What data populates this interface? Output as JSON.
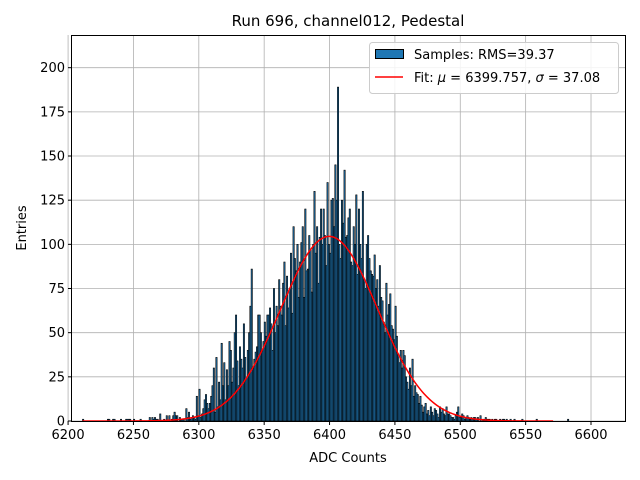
{
  "chart_data": {
    "type": "bar",
    "title": "Run 696, channel012, Pedestal",
    "xlabel": "ADC Counts",
    "ylabel": "Entries",
    "xlim": [
      6203,
      6626
    ],
    "ylim": [
      0,
      218.5
    ],
    "xticks": [
      6200,
      6250,
      6300,
      6350,
      6400,
      6450,
      6500,
      6550,
      6600
    ],
    "yticks": [
      0,
      25,
      50,
      75,
      100,
      125,
      150,
      175,
      200
    ],
    "grid": true,
    "legend_position": "top-right",
    "histogram": {
      "name": "Samples: RMS=39.37",
      "bin_start": 6211,
      "bin_width": 1,
      "color": "#1f77b4",
      "edgecolor": "#000000",
      "values": [
        1,
        0,
        0,
        0,
        0,
        0,
        0,
        0,
        0,
        0,
        0,
        0,
        0,
        0,
        0,
        0,
        0,
        0,
        0,
        1,
        1,
        0,
        0,
        1,
        1,
        0,
        0,
        0,
        0,
        1,
        0,
        0,
        0,
        1,
        1,
        1,
        1,
        0,
        0,
        1,
        0,
        0,
        0,
        0,
        1,
        0,
        0,
        0,
        0,
        0,
        0,
        2,
        0,
        2,
        1,
        2,
        1,
        1,
        0,
        4,
        0,
        0,
        1,
        0,
        3,
        0,
        3,
        0,
        1,
        3,
        5,
        3,
        3,
        0,
        2,
        1,
        1,
        1,
        0,
        7,
        2,
        5,
        1,
        2,
        3,
        2,
        1,
        14,
        3,
        18,
        2,
        4,
        7,
        12,
        15,
        10,
        7,
        10,
        14,
        20,
        30,
        5,
        36,
        8,
        22,
        12,
        44,
        20,
        33,
        12,
        29,
        20,
        45,
        40,
        22,
        30,
        50,
        60,
        34,
        20,
        42,
        35,
        30,
        55,
        36,
        24,
        40,
        50,
        65,
        86,
        30,
        35,
        39,
        42,
        60,
        60,
        50,
        40,
        45,
        56,
        48,
        60,
        60,
        64,
        55,
        40,
        75,
        50,
        65,
        54,
        80,
        65,
        60,
        78,
        90,
        54,
        82,
        64,
        75,
        95,
        61,
        110,
        92,
        85,
        100,
        70,
        90,
        101,
        110,
        70,
        120,
        85,
        86,
        105,
        97,
        73,
        100,
        130,
        95,
        110,
        78,
        104,
        120,
        100,
        120,
        105,
        88,
        135,
        100,
        95,
        125,
        126,
        110,
        145,
        125,
        189,
        100,
        92,
        125,
        112,
        142,
        104,
        105,
        115,
        120,
        90,
        88,
        110,
        100,
        128,
        83,
        120,
        100,
        92,
        130,
        80,
        75,
        100,
        105,
        92,
        85,
        83,
        82,
        94,
        75,
        80,
        65,
        88,
        70,
        68,
        56,
        50,
        78,
        60,
        66,
        72,
        54,
        52,
        46,
        65,
        48,
        38,
        33,
        40,
        30,
        40,
        37,
        25,
        22,
        18,
        30,
        20,
        35,
        14,
        20,
        16,
        15,
        10,
        14,
        9,
        5,
        8,
        10,
        4,
        6,
        3,
        8,
        5,
        3,
        7,
        6,
        4,
        2,
        8,
        5,
        7,
        4,
        3,
        8,
        4,
        4,
        3,
        2,
        2,
        1,
        3,
        5,
        8,
        2,
        2,
        4,
        3,
        1,
        2,
        3,
        2,
        1,
        2,
        1,
        2,
        2,
        1,
        2,
        0,
        3,
        0,
        1,
        1,
        2,
        1,
        1,
        1,
        0,
        1,
        0,
        1,
        1,
        0,
        0,
        1,
        0,
        1,
        1,
        0,
        1,
        0,
        0,
        1,
        0,
        0,
        1,
        0,
        0,
        0,
        0,
        0,
        1,
        0,
        0,
        0,
        0,
        0,
        0,
        0,
        0,
        0,
        0,
        1,
        0,
        0,
        0,
        0,
        0,
        0,
        0,
        0,
        0,
        0,
        0,
        0,
        0,
        0,
        0,
        0,
        0,
        0,
        0,
        0,
        0,
        0,
        0,
        1
      ]
    },
    "fit": {
      "name": "Fit: μ = 6399.757, σ = 37.08",
      "legend_parts": [
        "Fit: ",
        "μ",
        " = 6399.757, ",
        "σ",
        " = 37.08"
      ],
      "mu": 6399.757,
      "sigma": 37.08,
      "amplitude": 104.5,
      "x_range": [
        6211,
        6571
      ],
      "color": "#ff0000"
    }
  }
}
